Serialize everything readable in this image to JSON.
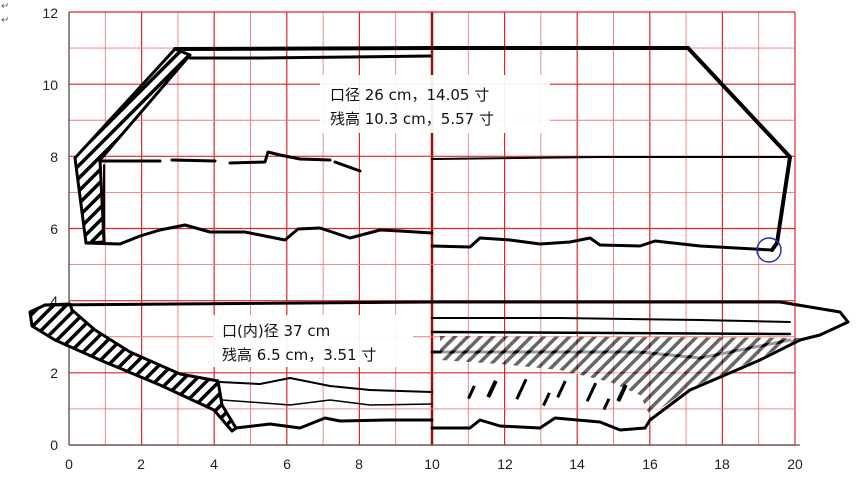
{
  "grid": {
    "x_ticks": [
      "0",
      "2",
      "4",
      "6",
      "8",
      "10",
      "12",
      "14",
      "16",
      "18",
      "20"
    ],
    "y_ticks": [
      "0",
      "2",
      "4",
      "6",
      "8",
      "10",
      "12"
    ]
  },
  "upper_vessel": {
    "label_line1": "口径  26 cm，14.05  寸",
    "label_line2": "残高 10.3 cm，5.57  寸"
  },
  "lower_vessel": {
    "label_line1": "口(内)径  37 cm",
    "label_line2": "残高 6.5 cm，3.51  寸"
  },
  "paragraph_marks": [
    "↵",
    "↵"
  ],
  "colors": {
    "grid_major": "#e0242a",
    "grid_minor": "#f07a7a",
    "center_line": "#9a1010",
    "ink": "#000000",
    "marker": "#2030c0"
  }
}
